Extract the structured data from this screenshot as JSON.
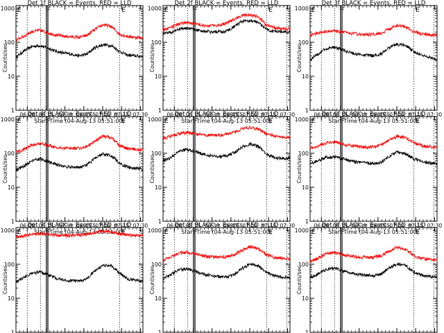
{
  "common": {
    "xlabel": "Start Time (04-Aug-13 05:51:00)",
    "ylabel": "Counts/sec",
    "x_ticks": [
      "06:00",
      "06:15",
      "06:30",
      "06:45",
      "07:00",
      "07:15",
      "07:30"
    ],
    "x_tick_minutes": [
      9,
      24,
      39,
      54,
      69,
      84,
      99
    ],
    "y_ticks": [
      "1",
      "10",
      "100",
      "1000"
    ],
    "ylim": [
      1,
      1200
    ],
    "xlim_minutes": [
      0,
      101
    ],
    "annotations": [
      {
        "label": "E",
        "minute": 0.5
      },
      {
        "label": "F",
        "minute": 24
      },
      {
        "label": "E",
        "minute": 83.5
      }
    ],
    "dotted_lines_minutes": [
      9,
      19.5,
      82.5,
      98.5
    ],
    "solid_band_minutes": [
      24.2,
      25.4
    ],
    "colors": {
      "events": "#000000",
      "lld": "#ff0000"
    }
  },
  "chart_data": [
    {
      "type": "line",
      "title": "Det 1f BLACK = Events, RED = LLD",
      "series": [
        {
          "name": "Events",
          "values": [
            35,
            55,
            75,
            80,
            68,
            55,
            48,
            45,
            40,
            45,
            70,
            85,
            80,
            55,
            42,
            40,
            38
          ]
        },
        {
          "name": "LLD",
          "values": [
            115,
            150,
            205,
            225,
            190,
            165,
            150,
            145,
            140,
            160,
            240,
            330,
            290,
            175,
            150,
            140,
            135
          ]
        }
      ]
    },
    {
      "type": "line",
      "title": "Det 2f BLACK = Events, RED = LLD",
      "series": [
        {
          "name": "Events",
          "values": [
            180,
            200,
            240,
            260,
            240,
            215,
            200,
            205,
            210,
            290,
            420,
            440,
            370,
            240,
            210,
            200,
            195
          ]
        },
        {
          "name": "LLD",
          "values": [
            230,
            270,
            350,
            390,
            350,
            310,
            300,
            320,
            360,
            480,
            620,
            650,
            540,
            320,
            270,
            250,
            240
          ]
        }
      ]
    },
    {
      "type": "line",
      "title": "Det 3f BLACK = Events, RED = LLD",
      "series": [
        {
          "name": "Events",
          "values": [
            30,
            45,
            65,
            72,
            60,
            50,
            44,
            42,
            40,
            45,
            70,
            88,
            82,
            55,
            42,
            38,
            30
          ]
        },
        {
          "name": "LLD",
          "values": [
            160,
            185,
            210,
            220,
            200,
            185,
            175,
            170,
            170,
            185,
            250,
            320,
            290,
            200,
            180,
            170,
            160
          ]
        }
      ]
    },
    {
      "type": "line",
      "title": "Det 4f BLACK = Events, RED = LLD",
      "series": [
        {
          "name": "Events",
          "values": [
            32,
            42,
            60,
            68,
            58,
            48,
            42,
            40,
            38,
            45,
            72,
            95,
            85,
            52,
            40,
            36,
            35
          ]
        },
        {
          "name": "LLD",
          "values": [
            105,
            130,
            175,
            195,
            175,
            150,
            140,
            140,
            140,
            160,
            230,
            320,
            290,
            170,
            140,
            130,
            125
          ]
        }
      ]
    },
    {
      "type": "line",
      "title": "Det 5f BLACK = Events, RED = LLD",
      "series": [
        {
          "name": "Events",
          "values": [
            60,
            75,
            110,
            130,
            115,
            95,
            85,
            80,
            85,
            105,
            155,
            190,
            160,
            95,
            75,
            70,
            70
          ]
        },
        {
          "name": "LLD",
          "values": [
            270,
            320,
            380,
            400,
            380,
            350,
            340,
            340,
            360,
            420,
            520,
            580,
            520,
            380,
            320,
            300,
            290
          ]
        }
      ]
    },
    {
      "type": "line",
      "title": "Det 6f BLACK = Events, RED = LLD",
      "series": [
        {
          "name": "Events",
          "values": [
            50,
            60,
            75,
            80,
            70,
            60,
            55,
            52,
            50,
            55,
            80,
            110,
            100,
            70,
            58,
            52,
            50
          ]
        },
        {
          "name": "LLD",
          "values": [
            140,
            165,
            200,
            215,
            190,
            170,
            160,
            155,
            155,
            175,
            240,
            320,
            290,
            200,
            170,
            160,
            150
          ]
        }
      ]
    },
    {
      "type": "line",
      "title": "Det 7f BLACK = Events, RED = LLD",
      "series": [
        {
          "name": "Events",
          "values": [
            30,
            40,
            55,
            60,
            50,
            40,
            35,
            33,
            32,
            38,
            65,
            95,
            90,
            55,
            38,
            34,
            33
          ]
        },
        {
          "name": "LLD",
          "values": [
            640,
            680,
            760,
            800,
            760,
            720,
            700,
            700,
            720,
            760,
            860,
            950,
            900,
            780,
            720,
            700,
            680
          ]
        }
      ]
    },
    {
      "type": "line",
      "title": "Det 8f BLACK = Events, RED = LLD",
      "series": [
        {
          "name": "Events",
          "values": [
            38,
            50,
            68,
            75,
            62,
            52,
            46,
            44,
            42,
            50,
            78,
            100,
            90,
            58,
            46,
            42,
            40
          ]
        },
        {
          "name": "LLD",
          "values": [
            130,
            160,
            210,
            230,
            205,
            180,
            165,
            160,
            165,
            190,
            260,
            330,
            290,
            190,
            160,
            150,
            145
          ]
        }
      ]
    },
    {
      "type": "line",
      "title": "Det 9f BLACK = Events, RED = LLD",
      "series": [
        {
          "name": "Events",
          "values": [
            40,
            52,
            70,
            78,
            65,
            55,
            50,
            48,
            46,
            52,
            80,
            102,
            92,
            60,
            48,
            44,
            42
          ]
        },
        {
          "name": "LLD",
          "values": [
            120,
            150,
            200,
            220,
            195,
            175,
            165,
            160,
            160,
            180,
            240,
            320,
            280,
            180,
            150,
            140,
            135
          ]
        }
      ]
    }
  ]
}
